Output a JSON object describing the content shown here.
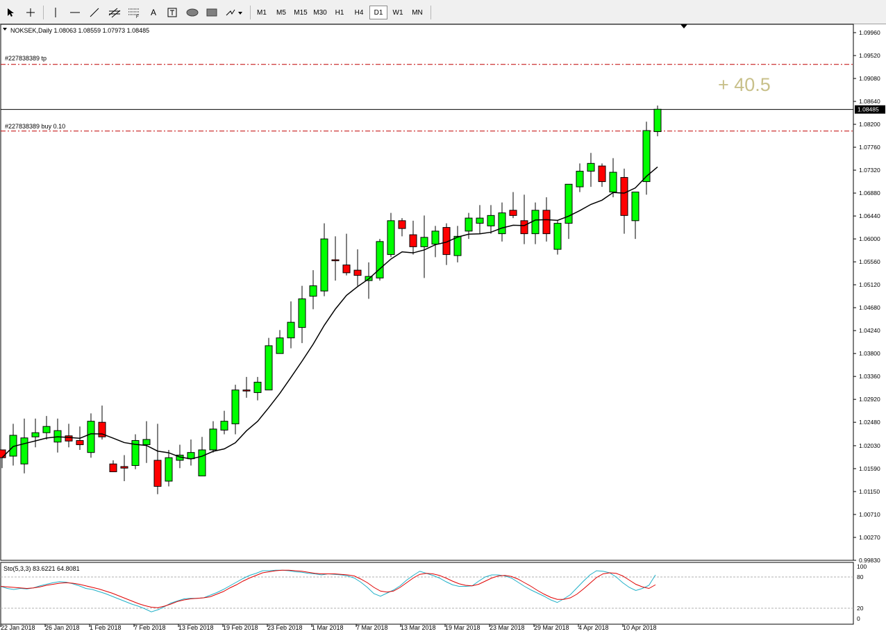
{
  "toolbar": {
    "tools": [
      {
        "name": "cursor-arrow-icon"
      },
      {
        "name": "crosshair-icon"
      },
      {
        "name": "vertical-line-icon"
      },
      {
        "name": "horizontal-line-icon"
      },
      {
        "name": "trendline-icon"
      },
      {
        "name": "equidistant-channel-icon"
      },
      {
        "name": "fibonacci-retracement-icon"
      },
      {
        "name": "text-icon",
        "label": "A"
      },
      {
        "name": "text-label-icon"
      },
      {
        "name": "ellipse-icon"
      },
      {
        "name": "rectangle-icon"
      },
      {
        "name": "arrows-dropdown-icon"
      }
    ],
    "timeframes": [
      "M1",
      "M5",
      "M15",
      "M30",
      "H1",
      "H4",
      "D1",
      "W1",
      "MN"
    ],
    "active_timeframe": "D1"
  },
  "main_chart": {
    "symbol_info": "NOKSEK,Daily  1.08063 1.08559 1.07973 1.08485",
    "tp_label": "#227838389 tp",
    "buy_label": "#227838389 buy  0.10",
    "profit_text": "+ 40.5",
    "current_price": "1.08485",
    "tp_level": 1.0935,
    "buy_level": 1.0807,
    "ylim": [
      0.9983,
      1.1012
    ],
    "y_ticks": [
      "1.09960",
      "1.09520",
      "1.09080",
      "1.08640",
      "1.08200",
      "1.07760",
      "1.07320",
      "1.06880",
      "1.06440",
      "1.06000",
      "1.05560",
      "1.05120",
      "1.04680",
      "1.04240",
      "1.03800",
      "1.03360",
      "1.02920",
      "1.02480",
      "1.02030",
      "1.01590",
      "1.01150",
      "1.00710",
      "1.00270",
      "0.99830"
    ],
    "colors": {
      "bull": "#00ff00",
      "bear": "#ff0000",
      "ma": "#000000",
      "level": "#c00000",
      "profit": "#c8c08a"
    }
  },
  "chart_data": [
    {
      "type": "candlestick",
      "title": "NOKSEK,Daily",
      "ohlc": [
        [
          1.0195,
          1.019,
          1.016,
          1.018
        ],
        [
          1.0183,
          1.0245,
          1.0165,
          1.0223
        ],
        [
          1.0168,
          1.0255,
          1.015,
          1.0218
        ],
        [
          1.022,
          1.0255,
          1.02,
          1.0228
        ],
        [
          1.0228,
          1.026,
          1.0215,
          1.024
        ],
        [
          1.021,
          1.0255,
          1.019,
          1.0232
        ],
        [
          1.0222,
          1.0245,
          1.02,
          1.0212
        ],
        [
          1.0213,
          1.024,
          1.0195,
          1.0205
        ],
        [
          1.019,
          1.0265,
          1.018,
          1.025
        ],
        [
          1.0248,
          1.028,
          1.0215,
          1.022
        ],
        [
          1.0168,
          1.0175,
          1.0155,
          1.0153
        ],
        [
          1.0163,
          1.0185,
          1.0135,
          1.016
        ],
        [
          1.0165,
          1.0225,
          1.0158,
          1.0213
        ],
        [
          1.0205,
          1.025,
          1.017,
          1.0215
        ],
        [
          1.0175,
          1.0245,
          1.011,
          1.0125
        ],
        [
          1.0135,
          1.0195,
          1.0125,
          1.018
        ],
        [
          1.0175,
          1.0205,
          1.016,
          1.0185
        ],
        [
          1.0178,
          1.0215,
          1.0165,
          1.019
        ],
        [
          1.0145,
          1.022,
          1.0145,
          1.0195
        ],
        [
          1.0195,
          1.025,
          1.019,
          1.0235
        ],
        [
          1.0233,
          1.027,
          1.0225,
          1.025
        ],
        [
          1.0245,
          1.032,
          1.0225,
          1.031
        ],
        [
          1.031,
          1.0335,
          1.0295,
          1.0308
        ],
        [
          1.0305,
          1.0335,
          1.029,
          1.0325
        ],
        [
          1.031,
          1.041,
          1.031,
          1.0395
        ],
        [
          1.038,
          1.0425,
          1.038,
          1.041
        ],
        [
          1.041,
          1.048,
          1.039,
          1.044
        ],
        [
          1.043,
          1.051,
          1.04,
          1.0485
        ],
        [
          1.049,
          1.054,
          1.0465,
          1.051
        ],
        [
          1.05,
          1.063,
          1.049,
          1.06
        ],
        [
          1.056,
          1.0605,
          1.052,
          1.0558
        ],
        [
          1.055,
          1.061,
          1.053,
          1.0535
        ],
        [
          1.054,
          1.058,
          1.051,
          1.053
        ],
        [
          1.052,
          1.0555,
          1.0485,
          1.0528
        ],
        [
          1.0525,
          1.06,
          1.052,
          1.0595
        ],
        [
          1.057,
          1.065,
          1.0565,
          1.0635
        ],
        [
          1.0635,
          1.064,
          1.0605,
          1.062
        ],
        [
          1.0608,
          1.0635,
          1.057,
          1.0585
        ],
        [
          1.0585,
          1.0645,
          1.0525,
          1.0603
        ],
        [
          1.059,
          1.0625,
          1.0565,
          1.0615
        ],
        [
          1.0622,
          1.063,
          1.055,
          1.057
        ],
        [
          1.0568,
          1.0625,
          1.0555,
          1.0605
        ],
        [
          1.0615,
          1.065,
          1.06,
          1.064
        ],
        [
          1.063,
          1.0665,
          1.061,
          1.064
        ],
        [
          1.0625,
          1.0665,
          1.061,
          1.0645
        ],
        [
          1.061,
          1.067,
          1.0595,
          1.065
        ],
        [
          1.0655,
          1.069,
          1.064,
          1.0645
        ],
        [
          1.0635,
          1.0685,
          1.059,
          1.061
        ],
        [
          1.061,
          1.067,
          1.059,
          1.0655
        ],
        [
          1.0655,
          1.068,
          1.0595,
          1.061
        ],
        [
          1.058,
          1.0635,
          1.057,
          1.063
        ],
        [
          1.063,
          1.0705,
          1.06,
          1.0705
        ],
        [
          1.07,
          1.0745,
          1.069,
          1.073
        ],
        [
          1.073,
          1.0765,
          1.07,
          1.0745
        ],
        [
          1.074,
          1.0745,
          1.07,
          1.071
        ],
        [
          1.069,
          1.0755,
          1.068,
          1.0728
        ],
        [
          1.0718,
          1.0735,
          1.061,
          1.0645
        ],
        [
          1.0635,
          1.069,
          1.06,
          1.069
        ],
        [
          1.071,
          1.0825,
          1.0685,
          1.0808
        ],
        [
          1.0806,
          1.0856,
          1.0797,
          1.0849
        ]
      ],
      "ma_period": 8
    },
    {
      "type": "line",
      "title": "Sto(5,3,3) 83.6221 64.8081",
      "ylim": [
        0,
        100
      ],
      "y_ticks": [
        "100",
        "80",
        "20",
        "0"
      ],
      "levels": [
        80,
        20
      ],
      "series": [
        {
          "values": [
            62,
            58,
            56,
            58,
            57,
            59,
            63,
            66,
            69,
            71,
            70,
            67,
            63,
            58,
            56,
            52,
            48,
            43,
            38,
            33,
            28,
            24,
            19,
            13,
            17,
            23,
            30,
            34,
            38,
            39,
            39,
            40,
            45,
            50,
            56,
            63,
            70,
            77,
            83,
            87,
            92,
            92,
            93,
            93,
            92,
            90,
            89,
            87,
            86,
            84,
            86,
            85,
            84,
            82,
            78,
            70,
            60,
            48,
            43,
            49,
            55,
            63,
            74,
            83,
            91,
            87,
            83,
            78,
            71,
            65,
            62,
            62,
            63,
            72,
            80,
            84,
            84,
            82,
            78,
            70,
            62,
            55,
            49,
            43,
            36,
            31,
            38,
            46,
            59,
            72,
            84,
            92,
            91,
            88,
            80,
            69,
            60,
            54,
            58,
            64,
            84
          ],
          "color": "#20b0c8"
        },
        {
          "values": [
            62,
            61,
            60,
            59,
            58,
            59,
            61,
            64,
            66,
            68,
            69,
            68,
            66,
            63,
            60,
            57,
            53,
            49,
            44,
            39,
            34,
            29,
            25,
            22,
            21,
            24,
            28,
            33,
            36,
            38,
            39,
            40,
            42,
            47,
            52,
            59,
            65,
            72,
            78,
            83,
            88,
            90,
            92,
            93,
            93,
            92,
            91,
            89,
            87,
            86,
            86,
            86,
            85,
            84,
            82,
            76,
            69,
            60,
            53,
            51,
            53,
            60,
            69,
            78,
            85,
            87,
            86,
            83,
            78,
            72,
            67,
            64,
            63,
            66,
            72,
            78,
            82,
            83,
            81,
            76,
            69,
            62,
            54,
            47,
            41,
            37,
            37,
            40,
            47,
            57,
            68,
            79,
            86,
            88,
            87,
            82,
            74,
            66,
            61,
            58,
            65
          ],
          "color": "#e00000"
        }
      ]
    }
  ],
  "x_axis": {
    "labels": [
      "22 Jan 2018",
      "26 Jan 2018",
      "1 Feb 2018",
      "7 Feb 2018",
      "13 Feb 2018",
      "19 Feb 2018",
      "23 Feb 2018",
      "1 Mar 2018",
      "7 Mar 2018",
      "13 Mar 2018",
      "19 Mar 2018",
      "23 Mar 2018",
      "29 Mar 2018",
      "4 Apr 2018",
      "10 Apr 2018"
    ]
  }
}
